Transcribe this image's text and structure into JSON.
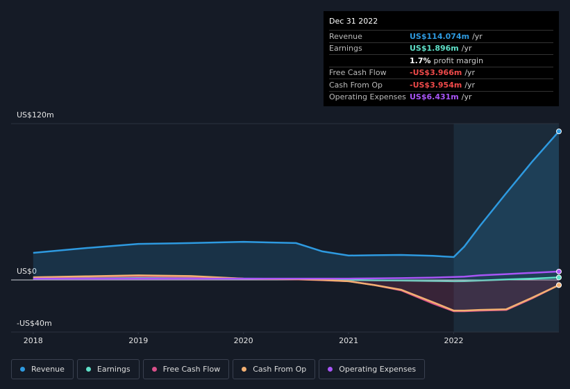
{
  "chart_data": {
    "type": "line",
    "x": [
      2018,
      2018.5,
      2019,
      2019.5,
      2020,
      2020.5,
      2020.75,
      2021,
      2021.25,
      2021.5,
      2021.8,
      2022,
      2022.1,
      2022.25,
      2022.5,
      2022.75,
      2023
    ],
    "xlim": [
      2017.79,
      2023
    ],
    "xticks": [
      2018,
      2019,
      2020,
      2021,
      2022
    ],
    "ylim": [
      -40,
      120
    ],
    "yticks": [
      {
        "value": 120,
        "label": "US$120m"
      },
      {
        "value": 0,
        "label": "US$0"
      },
      {
        "value": -40,
        "label": "-US$40m"
      }
    ],
    "grid": true,
    "series": [
      {
        "name": "Revenue",
        "color": "#2e9ae0",
        "fill": true,
        "values": [
          20.8,
          24.5,
          27.7,
          28.3,
          29.3,
          28.3,
          21.9,
          18.7,
          19.0,
          19.2,
          18.5,
          17.6,
          25.6,
          41.6,
          66.7,
          91.2,
          114.074
        ]
      },
      {
        "name": "Earnings",
        "color": "#5fe0c8",
        "fill": false,
        "values": [
          1,
          1.2,
          1.5,
          1.3,
          1,
          0.8,
          0.5,
          0,
          -0.3,
          -0.5,
          -0.8,
          -1,
          -0.9,
          -0.5,
          0.3,
          1,
          1.896
        ]
      },
      {
        "name": "Free Cash Flow",
        "color": "#d9508a",
        "fill": true,
        "values": [
          2,
          2.5,
          3,
          2.5,
          1,
          0.5,
          -0.2,
          -1,
          -4,
          -8,
          -18,
          -24,
          -24,
          -23.5,
          -23,
          -14,
          -3.966
        ]
      },
      {
        "name": "Cash From Op",
        "color": "#f2b072",
        "fill": false,
        "values": [
          2,
          2.8,
          3.5,
          3,
          1,
          0.6,
          0,
          -1,
          -4,
          -7.5,
          -17,
          -23.5,
          -23.5,
          -23,
          -22.5,
          -13.5,
          -3.954
        ]
      },
      {
        "name": "Operating Expenses",
        "color": "#a855f7",
        "fill": false,
        "values": [
          1,
          1,
          1,
          1,
          1,
          1,
          1,
          1,
          1.2,
          1.4,
          1.8,
          2.3,
          2.5,
          3.5,
          4.5,
          5.5,
          6.431
        ]
      }
    ]
  },
  "tooltip": {
    "date": "Dec 31 2022",
    "rows": [
      {
        "label": "Revenue",
        "value": "US$114.074m",
        "unit": "/yr",
        "color": "#2e9ae0"
      },
      {
        "label": "Earnings",
        "value": "US$1.896m",
        "unit": "/yr",
        "color": "#5fe0c8"
      },
      {
        "value": "1.7%",
        "unit": "profit margin",
        "color": "#ffffff"
      },
      {
        "label": "Free Cash Flow",
        "value": "-US$3.966m",
        "unit": "/yr",
        "color": "#f04a4a"
      },
      {
        "label": "Cash From Op",
        "value": "-US$3.954m",
        "unit": "/yr",
        "color": "#f04a4a"
      },
      {
        "label": "Operating Expenses",
        "value": "US$6.431m",
        "unit": "/yr",
        "color": "#a855f7"
      }
    ]
  }
}
